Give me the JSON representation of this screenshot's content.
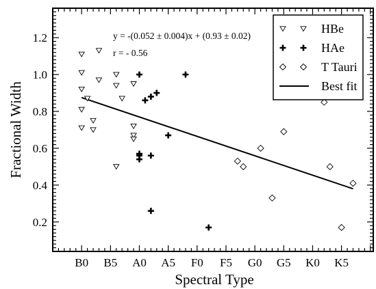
{
  "chart_data": {
    "type": "scatter",
    "title": "",
    "xlabel": "Spectral Type",
    "ylabel": "Fractional Width",
    "x_ticks": [
      {
        "label": "B0",
        "x": 0
      },
      {
        "label": "B5",
        "x": 5
      },
      {
        "label": "A0",
        "x": 10
      },
      {
        "label": "A5",
        "x": 15
      },
      {
        "label": "F0",
        "x": 20
      },
      {
        "label": "F5",
        "x": 25
      },
      {
        "label": "G0",
        "x": 30
      },
      {
        "label": "G5",
        "x": 35
      },
      {
        "label": "K0",
        "x": 40
      },
      {
        "label": "K5",
        "x": 45
      }
    ],
    "xlim": [
      -5,
      50.5
    ],
    "ylim": [
      0.04,
      1.36
    ],
    "y_ticks": [
      0.2,
      0.4,
      0.6,
      0.8,
      1.0,
      1.2
    ],
    "grid": false,
    "legend_position": "top-right",
    "annotations": [
      "y = -(0.052 ± 0.004)x + (0.93 ± 0.02)",
      "r = - 0.56"
    ],
    "series": [
      {
        "name": "HBe",
        "marker": "triangle-down",
        "points": [
          [
            0,
            1.11
          ],
          [
            0,
            1.01
          ],
          [
            0,
            0.92
          ],
          [
            0,
            0.81
          ],
          [
            0,
            0.71
          ],
          [
            1,
            0.87
          ],
          [
            2,
            0.75
          ],
          [
            2,
            0.7
          ],
          [
            3,
            1.13
          ],
          [
            3,
            0.97
          ],
          [
            6,
            1.0
          ],
          [
            6,
            0.94
          ],
          [
            6,
            0.5
          ],
          [
            7,
            0.87
          ],
          [
            9,
            0.95
          ],
          [
            9,
            0.72
          ],
          [
            9,
            0.67
          ],
          [
            9,
            0.65
          ],
          [
            10,
            0.56
          ]
        ]
      },
      {
        "name": "HAe",
        "marker": "plus",
        "points": [
          [
            10,
            1.0
          ],
          [
            10,
            0.57
          ],
          [
            10,
            0.56
          ],
          [
            10,
            0.54
          ],
          [
            11,
            0.86
          ],
          [
            12,
            0.88
          ],
          [
            12,
            0.56
          ],
          [
            12,
            0.26
          ],
          [
            13,
            0.9
          ],
          [
            15,
            0.67
          ],
          [
            18,
            1.0
          ],
          [
            22,
            0.17
          ]
        ]
      },
      {
        "name": "T Tauri",
        "marker": "diamond",
        "points": [
          [
            27,
            0.53
          ],
          [
            28,
            0.5
          ],
          [
            31,
            0.6
          ],
          [
            33,
            0.33
          ],
          [
            35,
            0.69
          ],
          [
            42,
            0.85
          ],
          [
            43,
            0.5
          ],
          [
            45,
            0.17
          ],
          [
            47,
            0.41
          ]
        ]
      },
      {
        "name": "Best fit",
        "marker": "line",
        "points": [
          [
            0,
            0.875
          ],
          [
            47,
            0.38
          ]
        ]
      }
    ]
  }
}
